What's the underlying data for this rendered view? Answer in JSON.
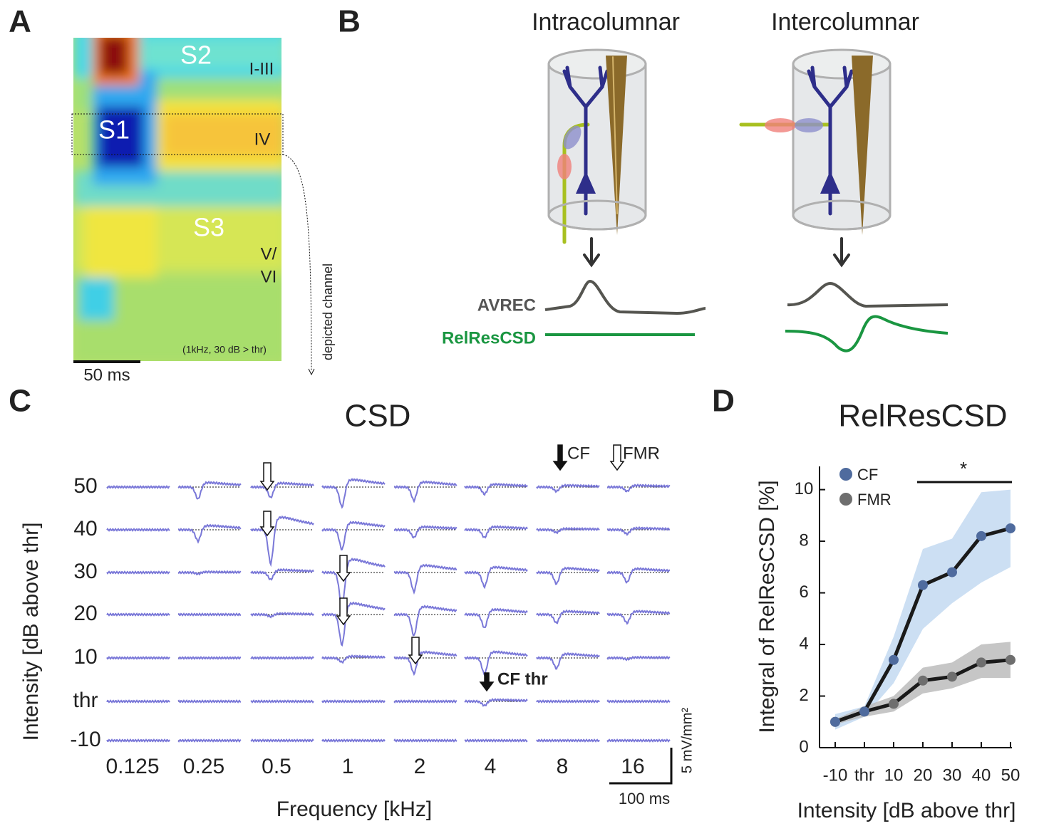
{
  "panels": {
    "A": {
      "label": "A",
      "regions": [
        "S2",
        "I-III",
        "S1",
        "IV",
        "S3",
        "V/",
        "VI"
      ],
      "note": "(1kHz, 30 dB > thr)",
      "scale_bar": "50 ms",
      "channel": "depicted channel"
    },
    "B": {
      "label": "B",
      "titles": [
        "Intracolumnar",
        "Intercolumnar"
      ],
      "traces": [
        "AVREC",
        "RelResCSD"
      ]
    },
    "C": {
      "label": "C",
      "title": "CSD",
      "y_axis_title": "Intensity [dB above thr]",
      "x_axis_title": "Frequency [kHz]",
      "intensities": [
        "50",
        "40",
        "30",
        "20",
        "10",
        "thr",
        "-10"
      ],
      "frequencies": [
        "0.125",
        "0.25",
        "0.5",
        "1",
        "2",
        "4",
        "8",
        "16"
      ],
      "legend": [
        "CF",
        "FMR"
      ],
      "annotation": "CF thr",
      "scale_y": "5 mV/mm²",
      "scale_x": "100 ms",
      "sink_depths": [
        [
          0,
          1.7,
          1.5,
          2.8,
          1.9,
          1.0,
          0.6,
          0.6
        ],
        [
          0,
          1.6,
          4.8,
          2.8,
          1.1,
          1.1,
          0.4,
          0.6
        ],
        [
          0,
          0.2,
          1.0,
          5.0,
          2.7,
          2.0,
          1.6,
          1.4
        ],
        [
          0,
          0,
          0.3,
          4.3,
          3.0,
          1.9,
          1.2,
          1.2
        ],
        [
          0,
          0,
          0,
          0.6,
          2.2,
          2.3,
          1.5,
          0.2
        ],
        [
          0,
          0,
          0,
          0,
          0,
          0.6,
          0,
          0
        ],
        [
          0,
          0,
          0,
          0,
          0,
          0,
          0,
          0
        ]
      ]
    },
    "D": {
      "label": "D",
      "significance": "*"
    }
  },
  "chart_data": {
    "type": "line",
    "title": "RelResCSD",
    "x_label": "Intensity [dB above thr]",
    "y_label": "Integral of RelResCSD [%]",
    "categories": [
      "-10",
      "thr",
      "10",
      "20",
      "30",
      "40",
      "50"
    ],
    "series": [
      {
        "name": "CF",
        "color": "#4f6b9e",
        "band_color": "#bfd7f0",
        "values": [
          1.0,
          1.4,
          3.4,
          6.3,
          6.8,
          8.2,
          8.5
        ],
        "lower": [
          0.7,
          1.2,
          2.5,
          4.6,
          5.6,
          6.4,
          7.0
        ],
        "upper": [
          1.3,
          1.6,
          4.3,
          7.7,
          8.1,
          9.9,
          10.0
        ]
      },
      {
        "name": "FMR",
        "color": "#6e6e6e",
        "band_color": "#b8b8b8",
        "values": [
          1.0,
          1.4,
          1.7,
          2.6,
          2.75,
          3.3,
          3.4
        ],
        "lower": [
          0.9,
          1.2,
          1.4,
          2.1,
          2.3,
          2.7,
          2.7
        ],
        "upper": [
          1.1,
          1.6,
          2.0,
          3.1,
          3.3,
          4.0,
          4.1
        ]
      }
    ],
    "ylim": [
      0,
      10.9
    ],
    "yticks": [
      0,
      2,
      4,
      6,
      8,
      10
    ],
    "legend": "top-left"
  }
}
